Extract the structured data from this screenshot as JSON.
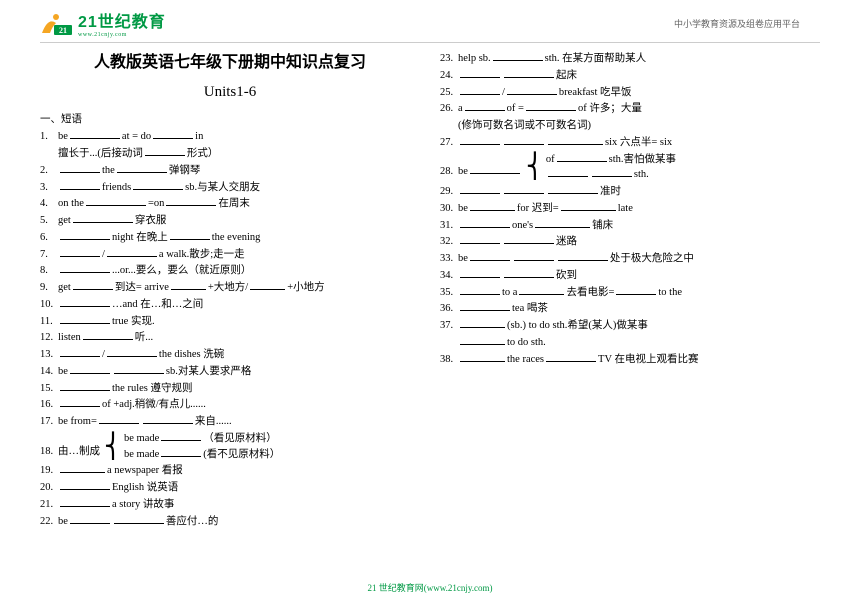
{
  "header": {
    "logo_main": "21世纪教育",
    "logo_sub": "www.21cnjy.com",
    "right_text": "中小学教育资源及组卷应用平台"
  },
  "title": "人教版英语七年级下册期中知识点复习",
  "subtitle": "Units1-6",
  "section_label": "一、短语",
  "left_items": [
    {
      "n": "1.",
      "pre": "be",
      "b1": 50,
      "mid": "at = do",
      "b2": 40,
      "post": "in"
    },
    {
      "n": "",
      "pre": "擅长于...(后接动词",
      "b1": 40,
      "post": "形式）"
    },
    {
      "n": "2.",
      "pre": "",
      "b1": 40,
      "mid": "the",
      "b2": 50,
      "post": "弹钢琴"
    },
    {
      "n": "3.",
      "pre": "",
      "b1": 40,
      "mid": "friends",
      "b2": 50,
      "post": "sb.与某人交朋友"
    },
    {
      "n": "4.",
      "pre": "on the",
      "b1": 60,
      "mid": "=on",
      "b2": 50,
      "post": " 在周末"
    },
    {
      "n": "5.",
      "pre": "get",
      "b1": 60,
      "post": "穿衣服"
    },
    {
      "n": "6.",
      "pre": "",
      "b1": 50,
      "mid": "night  在晚上",
      "b2": 40,
      "post": "the evening"
    },
    {
      "n": "7.",
      "pre": "",
      "b1": 40,
      "mid": "/",
      "b2": 50,
      "post": "a walk.散步;走一走"
    },
    {
      "n": "8.",
      "pre": "",
      "b1": 50,
      "post": "...or...要么，要么（就近原则）"
    },
    {
      "n": "9.",
      "pre": "get",
      "b1": 40,
      "mid": "到达= arrive",
      "b2": 35,
      "mid2": "+大地方/",
      "b3": 35,
      "post": "+小地方"
    },
    {
      "n": "10.",
      "pre": "",
      "b1": 50,
      "post": "…and     在…和…之间"
    },
    {
      "n": "11.",
      "pre": "",
      "b1": 50,
      "post": "true 实现."
    },
    {
      "n": "12.",
      "pre": "listen",
      "b1": 50,
      "post": "听..."
    },
    {
      "n": "13.",
      "pre": "",
      "b1": 40,
      "mid": "/",
      "b2": 50,
      "post": "the dishes  洗碗"
    },
    {
      "n": "14.",
      "pre": "be",
      "b1": 40,
      "mid": "",
      "b2": 50,
      "post": "sb.对某人要求严格"
    },
    {
      "n": "15.",
      "pre": "",
      "b1": 50,
      "post": "the rules 遵守规则"
    },
    {
      "n": "16.",
      "pre": "",
      "b1": 40,
      "post": "of +adj.稍微/有点儿......"
    },
    {
      "n": "17.",
      "pre": "be from=",
      "b1": 40,
      "mid": "",
      "b2": 50,
      "post": "来自......"
    }
  ],
  "item18": {
    "n": "18.",
    "pre": "由…制成",
    "line1_pre": "be   made",
    "line1_b": 40,
    "line1_post": "（看见原材料）",
    "line2_pre": "be   made",
    "line2_b": 40,
    "line2_post": "(看不见原材料）"
  },
  "left_items_after": [
    {
      "n": "19.",
      "pre": "",
      "b1": 45,
      "post": "a newspaper 看报"
    },
    {
      "n": "20.",
      "pre": "",
      "b1": 50,
      "post": "English 说英语"
    },
    {
      "n": "21.",
      "pre": "",
      "b1": 50,
      "post": "a story 讲故事"
    },
    {
      "n": "22.",
      "pre": "be",
      "b1": 40,
      "mid": "",
      "b2": 50,
      "post": "善应付…的"
    }
  ],
  "right_items": [
    {
      "n": "23.",
      "pre": "help sb.",
      "b1": 50,
      "post": "sth.  在某方面帮助某人"
    },
    {
      "n": "24.",
      "pre": "",
      "b1": 40,
      "mid": "",
      "b2": 50,
      "post": "起床"
    },
    {
      "n": "25.",
      "pre": "",
      "b1": 40,
      "mid": "/",
      "b2": 50,
      "post": "breakfast 吃早饭"
    },
    {
      "n": "26.",
      "pre": "a",
      "b1": 40,
      "mid": "of =",
      "b2": 50,
      "post": "of  许多；大量"
    },
    {
      "n": "",
      "pre": "     (修饰可数名词或不可数名词)"
    },
    {
      "n": "27.",
      "pre": "",
      "b1": 40,
      "mid": "",
      "b2": 40,
      "post": "six  六点半= six",
      "b3": 55
    }
  ],
  "item28": {
    "n": "28.",
    "pre": "be",
    "b1": 50,
    "line1_pre": "of",
    "line1_b": 50,
    "line1_post": "sth.害怕做某事",
    "line2_pre": "",
    "line2_b": 40,
    "line2_b2": 40,
    "line2_post": "sth."
  },
  "right_items_after": [
    {
      "n": "29.",
      "pre": "",
      "b1": 40,
      "mid": "",
      "b2": 40,
      "mid2": "",
      "b3": 50,
      "post": "准时"
    },
    {
      "n": "30.",
      "pre": "be",
      "b1": 45,
      "mid": "for 迟到=",
      "b2": 55,
      "post": "late"
    },
    {
      "n": "31.",
      "pre": "",
      "b1": 50,
      "mid": "one's",
      "b2": 55,
      "post": "铺床"
    },
    {
      "n": "32.",
      "pre": "",
      "b1": 40,
      "mid": "",
      "b2": 50,
      "post": "迷路"
    },
    {
      "n": "33.",
      "pre": "be",
      "b1": 40,
      "mid": "",
      "b2": 40,
      "mid2": "",
      "b3": 50,
      "post": "处于极大危险之中"
    },
    {
      "n": "34.",
      "pre": "",
      "b1": 40,
      "mid": "",
      "b2": 50,
      "post": "砍到"
    },
    {
      "n": "35.",
      "pre": "",
      "b1": 40,
      "mid": "to a",
      "b2": 45,
      "mid2": "去看电影=",
      "b3": 40,
      "post": "to the"
    },
    {
      "n": "36.",
      "pre": "",
      "b1": 50,
      "post": "tea  喝茶"
    },
    {
      "n": "37.",
      "pre": "",
      "b1": 45,
      "post": "(sb.) to do sth.希望(某人)做某事"
    },
    {
      "n": "",
      "pre": "",
      "b1": 45,
      "post": " to do sth."
    },
    {
      "n": "38.",
      "pre": "",
      "b1": 45,
      "mid": "the races",
      "b2": 50,
      "post": "TV 在电视上观看比赛"
    }
  ],
  "footer": "21 世纪教育网(www.21cnjy.com)",
  "colors": {
    "green": "#009944",
    "gray": "#666666",
    "black": "#000000",
    "divider": "#cccccc"
  }
}
